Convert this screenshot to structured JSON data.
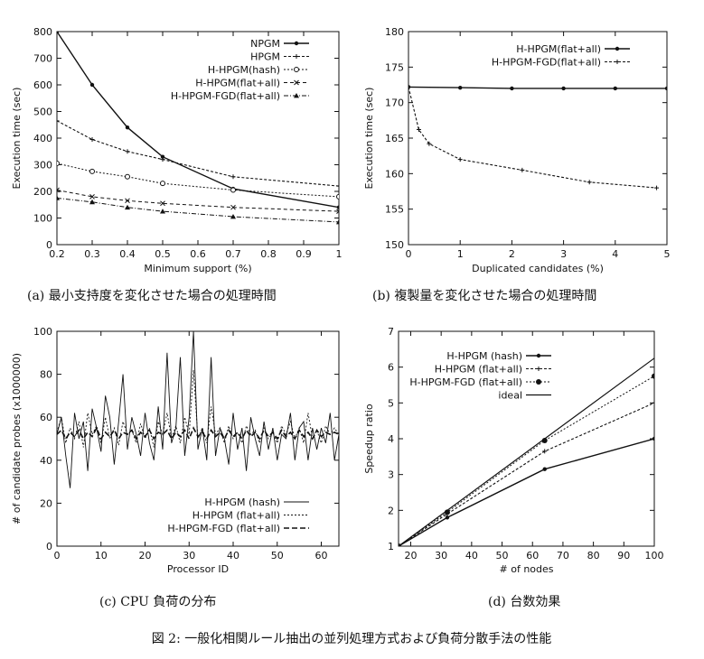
{
  "figure_caption": "図 2: 一般化相関ルール抽出の並列処理方式および負荷分散手法の性能",
  "chart_data": [
    {
      "id": "a",
      "type": "line",
      "caption": "(a) 最小支持度を変化させた場合の処理時間",
      "xlabel": "Minimum support (%)",
      "ylabel": "Execution time (sec)",
      "xlim": [
        0.2,
        1.0
      ],
      "ylim": [
        0,
        800
      ],
      "xticks": [
        0.2,
        0.3,
        0.4,
        0.5,
        0.6,
        0.7,
        0.8,
        0.9,
        1.0
      ],
      "xtick_labels": [
        "0.2",
        "0.3",
        "0.4",
        "0.5",
        "0.6",
        "0.7",
        "0.8",
        "0.9",
        "1"
      ],
      "yticks": [
        0,
        100,
        200,
        300,
        400,
        500,
        600,
        700,
        800
      ],
      "legend_position": "top-right",
      "series": [
        {
          "name": "NPGM",
          "x": [
            0.2,
            0.3,
            0.4,
            0.5,
            0.7,
            1.0
          ],
          "y": [
            800,
            600,
            440,
            330,
            210,
            140
          ]
        },
        {
          "name": "HPGM",
          "x": [
            0.2,
            0.3,
            0.4,
            0.5,
            0.7,
            1.0
          ],
          "y": [
            465,
            395,
            350,
            320,
            255,
            220
          ]
        },
        {
          "name": "H-HPGM(hash)",
          "x": [
            0.2,
            0.3,
            0.4,
            0.5,
            0.7,
            1.0
          ],
          "y": [
            305,
            275,
            255,
            230,
            205,
            180
          ]
        },
        {
          "name": "H-HPGM(flat+all)",
          "x": [
            0.2,
            0.3,
            0.4,
            0.5,
            0.7,
            1.0
          ],
          "y": [
            205,
            180,
            165,
            155,
            140,
            125
          ]
        },
        {
          "name": "H-HPGM-FGD(flat+all)",
          "x": [
            0.2,
            0.3,
            0.4,
            0.5,
            0.7,
            1.0
          ],
          "y": [
            175,
            160,
            140,
            125,
            105,
            85
          ]
        }
      ]
    },
    {
      "id": "b",
      "type": "line",
      "caption": "(b) 複製量を変化させた場合の処理時間",
      "xlabel": "Duplicated candidates (%)",
      "ylabel": "Execution time (sec)",
      "xlim": [
        0,
        5
      ],
      "ylim": [
        150,
        180
      ],
      "xticks": [
        0,
        1,
        2,
        3,
        4,
        5
      ],
      "yticks": [
        150,
        155,
        160,
        165,
        170,
        175,
        180
      ],
      "legend_position": "top-right",
      "series": [
        {
          "name": "H-HPGM(flat+all)",
          "x": [
            0,
            1,
            2,
            3,
            4,
            5
          ],
          "y": [
            172.2,
            172.1,
            172.0,
            172.0,
            172.0,
            172.0
          ]
        },
        {
          "name": "H-HPGM-FGD(flat+all)",
          "x": [
            0,
            0.2,
            0.4,
            1.0,
            2.2,
            3.5,
            4.8
          ],
          "y": [
            172.2,
            166.2,
            164.2,
            162.0,
            160.5,
            158.8,
            158.0
          ]
        }
      ]
    },
    {
      "id": "c",
      "type": "line",
      "caption": "(c) CPU 負荷の分布",
      "xlabel": "Processor ID",
      "ylabel": "# of candidate probes (x1000000)",
      "xlim": [
        0,
        64
      ],
      "ylim": [
        0,
        100
      ],
      "xticks": [
        0,
        10,
        20,
        30,
        40,
        50,
        60
      ],
      "yticks": [
        0,
        20,
        40,
        60,
        80,
        100
      ],
      "legend_position": "bottom-right",
      "series": [
        {
          "name": "H-HPGM (hash)",
          "x": [
            0,
            1,
            2,
            3,
            4,
            5,
            6,
            7,
            8,
            9,
            10,
            11,
            12,
            13,
            14,
            15,
            16,
            17,
            18,
            19,
            20,
            21,
            22,
            23,
            24,
            25,
            26,
            27,
            28,
            29,
            30,
            31,
            32,
            33,
            34,
            35,
            36,
            37,
            38,
            39,
            40,
            41,
            42,
            43,
            44,
            45,
            46,
            47,
            48,
            49,
            50,
            51,
            52,
            53,
            54,
            55,
            56,
            57,
            58,
            59,
            60,
            61,
            62,
            63,
            64
          ],
          "y": [
            52,
            60,
            42,
            27,
            62,
            50,
            58,
            35,
            64,
            55,
            44,
            70,
            60,
            38,
            58,
            80,
            45,
            60,
            52,
            42,
            62,
            48,
            40,
            65,
            45,
            90,
            48,
            55,
            88,
            42,
            60,
            100,
            45,
            55,
            40,
            88,
            42,
            55,
            50,
            38,
            62,
            45,
            55,
            35,
            60,
            50,
            42,
            58,
            45,
            55,
            40,
            52,
            50,
            62,
            40,
            55,
            58,
            40,
            55,
            45,
            55,
            48,
            62,
            40,
            52
          ]
        },
        {
          "name": "H-HPGM (flat+all)",
          "x": [
            0,
            1,
            2,
            3,
            4,
            5,
            6,
            7,
            8,
            9,
            10,
            11,
            12,
            13,
            14,
            15,
            16,
            17,
            18,
            19,
            20,
            21,
            22,
            23,
            24,
            25,
            26,
            27,
            28,
            29,
            30,
            31,
            32,
            33,
            34,
            35,
            36,
            37,
            38,
            39,
            40,
            41,
            42,
            43,
            44,
            45,
            46,
            47,
            48,
            49,
            50,
            51,
            52,
            53,
            54,
            55,
            56,
            57,
            58,
            59,
            60,
            61,
            62,
            63,
            64
          ],
          "y": [
            53,
            60,
            48,
            55,
            50,
            58,
            46,
            62,
            52,
            56,
            48,
            60,
            50,
            55,
            47,
            58,
            52,
            54,
            48,
            57,
            50,
            55,
            46,
            58,
            52,
            62,
            50,
            56,
            48,
            60,
            52,
            82,
            50,
            55,
            48,
            65,
            52,
            55,
            48,
            56,
            50,
            53,
            48,
            56,
            52,
            54,
            48,
            55,
            50,
            53,
            48,
            56,
            52,
            58,
            50,
            55,
            48,
            62,
            50,
            54,
            48,
            56,
            52,
            55,
            52
          ]
        },
        {
          "name": "H-HPGM-FGD (flat+all)",
          "x": [
            0,
            1,
            2,
            3,
            4,
            5,
            6,
            7,
            8,
            9,
            10,
            11,
            12,
            13,
            14,
            15,
            16,
            17,
            18,
            19,
            20,
            21,
            22,
            23,
            24,
            25,
            26,
            27,
            28,
            29,
            30,
            31,
            32,
            33,
            34,
            35,
            36,
            37,
            38,
            39,
            40,
            41,
            42,
            43,
            44,
            45,
            46,
            47,
            48,
            49,
            50,
            51,
            52,
            53,
            54,
            55,
            56,
            57,
            58,
            59,
            60,
            61,
            62,
            63,
            64
          ],
          "y": [
            52,
            54,
            50,
            53,
            51,
            54,
            50,
            53,
            51,
            55,
            50,
            53,
            51,
            54,
            50,
            53,
            52,
            54,
            50,
            53,
            51,
            54,
            50,
            53,
            52,
            54,
            50,
            53,
            51,
            54,
            50,
            55,
            51,
            53,
            50,
            54,
            51,
            53,
            50,
            54,
            51,
            53,
            50,
            54,
            51,
            53,
            50,
            54,
            51,
            53,
            50,
            54,
            51,
            53,
            50,
            54,
            51,
            53,
            50,
            54,
            51,
            53,
            52,
            53,
            52
          ]
        }
      ]
    },
    {
      "id": "d",
      "type": "line",
      "caption": "(d) 台数効果",
      "xlabel": "# of nodes",
      "ylabel": "Speedup ratio",
      "xlim": [
        16,
        100
      ],
      "ylim": [
        1,
        7
      ],
      "xticks": [
        20,
        30,
        40,
        50,
        60,
        70,
        80,
        90,
        100
      ],
      "yticks": [
        1,
        2,
        3,
        4,
        5,
        6,
        7
      ],
      "legend_position": "top-left",
      "series": [
        {
          "name": "H-HPGM (hash)",
          "x": [
            16,
            32,
            64,
            100
          ],
          "y": [
            1,
            1.8,
            3.15,
            4.0
          ]
        },
        {
          "name": "H-HPGM (flat+all)",
          "x": [
            16,
            32,
            64,
            100
          ],
          "y": [
            1,
            1.9,
            3.65,
            5.0
          ]
        },
        {
          "name": "H-HPGM-FGD (flat+all)",
          "x": [
            16,
            32,
            64,
            100
          ],
          "y": [
            1,
            1.95,
            3.95,
            5.75
          ]
        },
        {
          "name": "ideal",
          "x": [
            16,
            100
          ],
          "y": [
            1,
            6.25
          ]
        }
      ]
    }
  ]
}
